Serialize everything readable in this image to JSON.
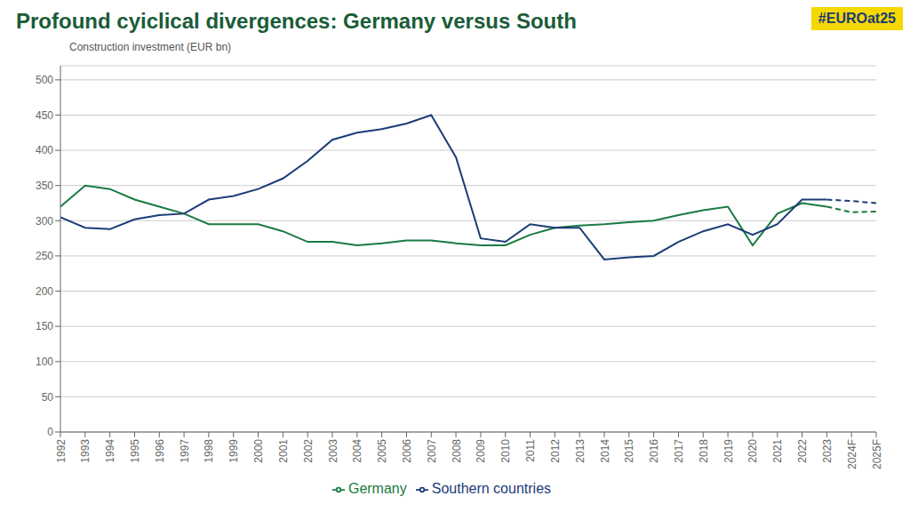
{
  "chart_data": {
    "type": "line",
    "title": "Profound cyiclical divergences: Germany versus South",
    "ylabel": "Construction investment (EUR bn)",
    "annotation": "#EUROat25",
    "categories": [
      "1992",
      "1993",
      "1994",
      "1995",
      "1996",
      "1997",
      "1998",
      "1999",
      "2000",
      "2001",
      "2002",
      "2003",
      "2004",
      "2005",
      "2006",
      "2007",
      "2008",
      "2009",
      "2010",
      "2011",
      "2012",
      "2013",
      "2014",
      "2015",
      "2016",
      "2017",
      "2018",
      "2019",
      "2020",
      "2021",
      "2022",
      "2023",
      "2024F",
      "2025F"
    ],
    "series": [
      {
        "name": "Germany",
        "color": "#1a7a40",
        "line_style": "solid",
        "values": [
          320,
          350,
          345,
          330,
          320,
          310,
          295,
          295,
          295,
          285,
          270,
          270,
          265,
          268,
          272,
          272,
          268,
          265,
          265,
          280,
          290,
          293,
          295,
          298,
          300,
          308,
          315,
          320,
          265,
          310,
          325,
          320,
          null,
          null
        ]
      },
      {
        "name": "Germany",
        "color": "#1a7a40",
        "line_style": "dashed",
        "values": [
          null,
          null,
          null,
          null,
          null,
          null,
          null,
          null,
          null,
          null,
          null,
          null,
          null,
          null,
          null,
          null,
          null,
          null,
          null,
          null,
          null,
          null,
          null,
          null,
          null,
          null,
          null,
          null,
          null,
          null,
          null,
          320,
          312,
          313
        ]
      },
      {
        "name": "Southern countries",
        "color": "#1a3c78",
        "line_style": "solid",
        "values": [
          305,
          290,
          288,
          302,
          308,
          310,
          330,
          335,
          345,
          360,
          385,
          415,
          425,
          430,
          438,
          450,
          390,
          275,
          270,
          295,
          290,
          290,
          245,
          248,
          250,
          270,
          285,
          295,
          280,
          295,
          330,
          330,
          null,
          null
        ]
      },
      {
        "name": "Southern countries",
        "color": "#1a3c78",
        "line_style": "dashed",
        "values": [
          null,
          null,
          null,
          null,
          null,
          null,
          null,
          null,
          null,
          null,
          null,
          null,
          null,
          null,
          null,
          null,
          null,
          null,
          null,
          null,
          null,
          null,
          null,
          null,
          null,
          null,
          null,
          null,
          null,
          null,
          null,
          330,
          328,
          325
        ]
      }
    ],
    "ylim": [
      0,
      520
    ],
    "yticks": [
      0,
      50,
      100,
      150,
      200,
      250,
      300,
      350,
      400,
      450,
      500
    ],
    "grid": true,
    "legend": "bottom"
  }
}
